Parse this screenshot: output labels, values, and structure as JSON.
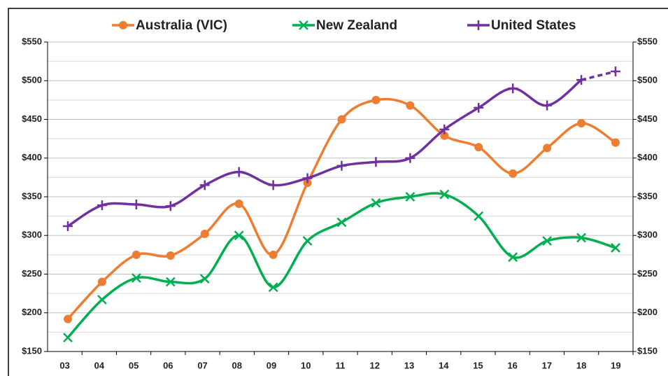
{
  "chart_data": {
    "type": "line",
    "categories": [
      "03",
      "04",
      "05",
      "06",
      "07",
      "08",
      "09",
      "10",
      "11",
      "12",
      "13",
      "14",
      "15",
      "16",
      "17",
      "18",
      "19"
    ],
    "series": [
      {
        "name": "Australia (VIC)",
        "color": "#ed7d31",
        "marker": "circle",
        "values": [
          192,
          240,
          275,
          274,
          302,
          341,
          275,
          368,
          450,
          475,
          468,
          429,
          414,
          380,
          413,
          445,
          420
        ]
      },
      {
        "name": "New Zealand",
        "color": "#00b050",
        "marker": "x",
        "values": [
          168,
          217,
          245,
          240,
          244,
          300,
          233,
          293,
          317,
          342,
          350,
          353,
          325,
          272,
          293,
          297,
          284
        ]
      },
      {
        "name": "United States",
        "color": "#7030a0",
        "marker": "plus",
        "dashed_from_index": 15,
        "values": [
          312,
          339,
          340,
          338,
          365,
          382,
          365,
          374,
          390,
          395,
          400,
          437,
          465,
          490,
          468,
          501,
          512
        ]
      }
    ],
    "ylim": [
      150,
      550
    ],
    "yticks": [
      {
        "value": 150,
        "label": "$150"
      },
      {
        "value": 200,
        "label": "$200"
      },
      {
        "value": 250,
        "label": "$250"
      },
      {
        "value": 300,
        "label": "$300"
      },
      {
        "value": 350,
        "label": "$350"
      },
      {
        "value": 400,
        "label": "$400"
      },
      {
        "value": 450,
        "label": "$450"
      },
      {
        "value": 500,
        "label": "$500"
      },
      {
        "value": 550,
        "label": "$550"
      }
    ],
    "minor_yticks": [
      175,
      225,
      275,
      325,
      375,
      425,
      475,
      525
    ],
    "y2lim": [
      150,
      550
    ],
    "y2ticks": [
      {
        "value": 150,
        "label": "$150"
      },
      {
        "value": 200,
        "label": "$200"
      },
      {
        "value": 250,
        "label": "$250"
      },
      {
        "value": 300,
        "label": "$300"
      },
      {
        "value": 350,
        "label": "$350"
      },
      {
        "value": 400,
        "label": "$400"
      },
      {
        "value": 450,
        "label": "$450"
      },
      {
        "value": 500,
        "label": "$500"
      },
      {
        "value": 550,
        "label": "$550"
      }
    ],
    "grid": true,
    "smooth": true,
    "legend": "top"
  }
}
